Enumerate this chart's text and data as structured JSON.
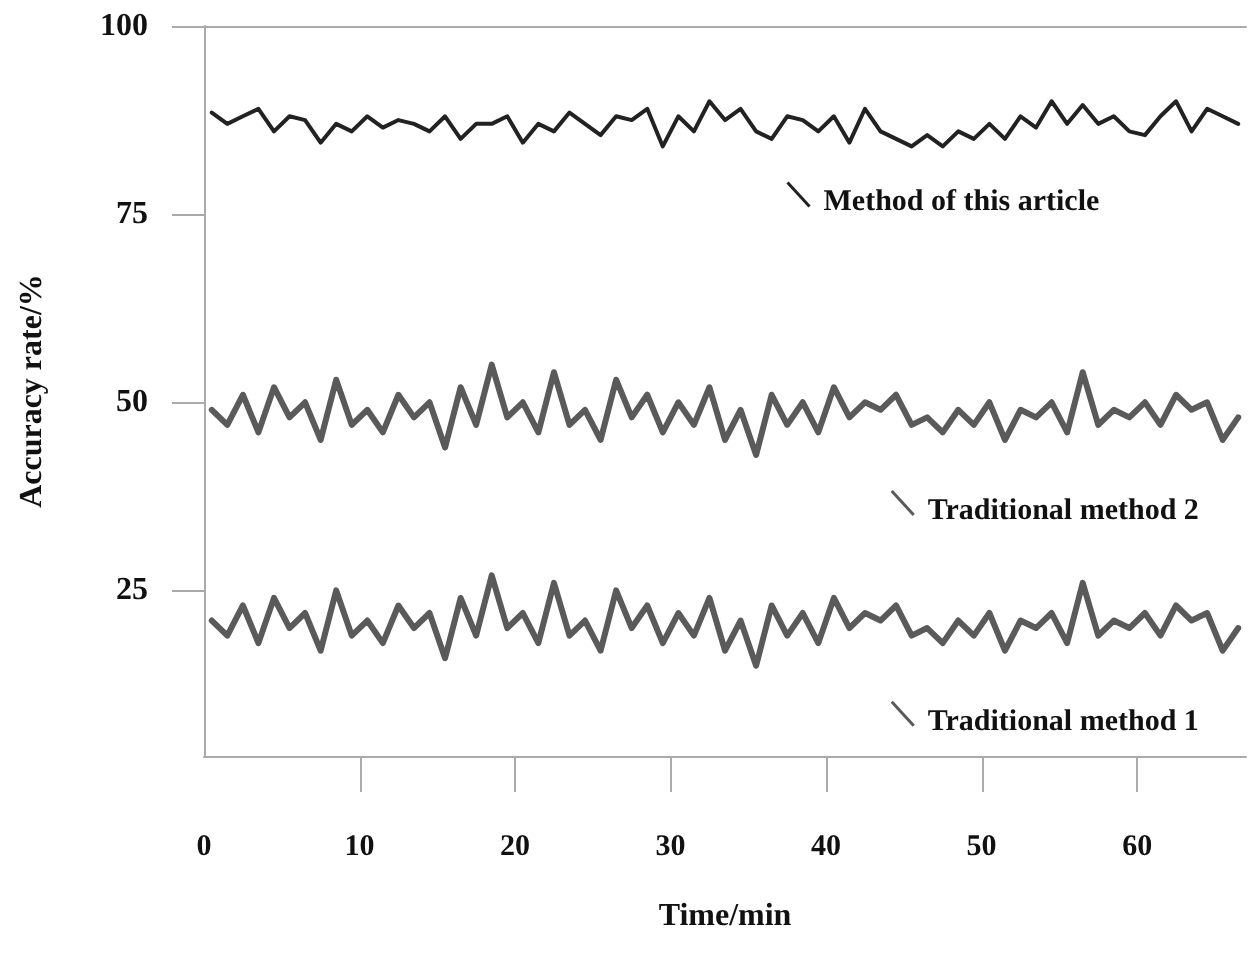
{
  "chart_data": {
    "type": "line",
    "xlabel": "Time/min",
    "ylabel": "Accuracy rate/%",
    "xlim": [
      0,
      67
    ],
    "xticks": [
      0,
      10,
      20,
      30,
      40,
      50,
      60
    ],
    "ylim": [
      3,
      100
    ],
    "yticks": [
      25,
      50,
      75,
      100
    ],
    "grid": false,
    "legend": "right",
    "marker": "none",
    "line_style": "solid",
    "x": [
      0.5,
      1.5,
      2.5,
      3.5,
      4.5,
      5.5,
      6.5,
      7.5,
      8.5,
      9.5,
      10.5,
      11.5,
      12.5,
      13.5,
      14.5,
      15.5,
      16.5,
      17.5,
      18.5,
      19.5,
      20.5,
      21.5,
      22.5,
      23.5,
      24.5,
      25.5,
      26.5,
      27.5,
      28.5,
      29.5,
      30.5,
      31.5,
      32.5,
      33.5,
      34.5,
      35.5,
      36.5,
      37.5,
      38.5,
      39.5,
      40.5,
      41.5,
      42.5,
      43.5,
      44.5,
      45.5,
      46.5,
      47.5,
      48.5,
      49.5,
      50.5,
      51.5,
      52.5,
      53.5,
      54.5,
      55.5,
      56.5,
      57.5,
      58.5,
      59.5,
      60.5,
      61.5,
      62.5,
      63.5,
      64.5,
      65.5,
      66.5
    ],
    "series": [
      {
        "name": "Method of this article",
        "color": "#222222",
        "values": [
          88.5,
          87,
          88,
          89,
          86,
          88,
          87.5,
          84.5,
          87,
          86,
          88,
          86.5,
          87.5,
          87,
          86,
          88,
          85,
          87,
          87,
          88,
          84.5,
          87,
          86,
          88.5,
          87,
          85.5,
          88,
          87.5,
          89,
          84,
          88,
          86,
          90,
          87.5,
          89,
          86,
          85,
          88,
          87.5,
          86,
          88,
          84.5,
          89,
          86,
          85,
          84,
          85.5,
          84,
          86,
          85,
          87,
          85,
          88,
          86.5,
          90,
          87,
          89.5,
          87,
          88,
          86,
          85.5,
          88,
          90,
          86,
          89,
          88,
          87
        ]
      },
      {
        "name": "Traditional method 2",
        "color": "#5a5a5a",
        "values": [
          49,
          47,
          51,
          46,
          52,
          48,
          50,
          45,
          53,
          47,
          49,
          46,
          51,
          48,
          50,
          44,
          52,
          47,
          55,
          48,
          50,
          46,
          54,
          47,
          49,
          45,
          53,
          48,
          51,
          46,
          50,
          47,
          52,
          45,
          49,
          43,
          51,
          47,
          50,
          46,
          52,
          48,
          50,
          49,
          51,
          47,
          48,
          46,
          49,
          47,
          50,
          45,
          49,
          48,
          50,
          46,
          54,
          47,
          49,
          48,
          50,
          47,
          51,
          49,
          50,
          45,
          48
        ]
      },
      {
        "name": "Traditional method 1",
        "color": "#5a5a5a",
        "values": [
          21,
          19,
          23,
          18,
          24,
          20,
          22,
          17,
          25,
          19,
          21,
          18,
          23,
          20,
          22,
          16,
          24,
          19,
          27,
          20,
          22,
          18,
          26,
          19,
          21,
          17,
          25,
          20,
          23,
          18,
          22,
          19,
          24,
          17,
          21,
          15,
          23,
          19,
          22,
          18,
          24,
          20,
          22,
          21,
          23,
          19,
          20,
          18,
          21,
          19,
          22,
          17,
          21,
          20,
          22,
          18,
          26,
          19,
          21,
          20,
          22,
          19,
          23,
          21,
          22,
          17,
          20
        ]
      }
    ]
  }
}
